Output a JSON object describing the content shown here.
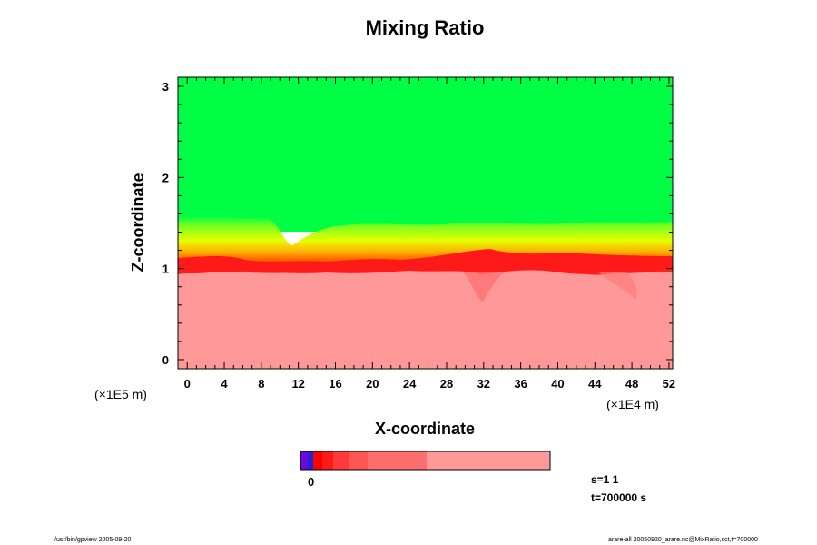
{
  "chart_data": {
    "type": "heatmap",
    "title": "Mixing Ratio",
    "xlabel": "X-coordinate",
    "ylabel": "Z-coordinate",
    "x_scale_label": "(×1E4 m)",
    "y_scale_label": "(×1E5 m)",
    "xlim": [
      -1,
      52.4
    ],
    "ylim": [
      -0.1,
      3.1
    ],
    "x_ticks": [
      "0",
      "4",
      "8",
      "12",
      "16",
      "20",
      "24",
      "28",
      "32",
      "36",
      "40",
      "44",
      "48",
      "52"
    ],
    "y_ticks": [
      "0",
      "1",
      "2",
      "3"
    ],
    "regions": [
      {
        "name": "upper",
        "z_from": 1.5,
        "z_to": 3.1,
        "color": "#00ff44"
      },
      {
        "name": "transition",
        "z_from": 1.1,
        "z_to": 1.5,
        "color": "#e8ff00"
      },
      {
        "name": "interface",
        "z_from": 1.0,
        "z_to": 1.1,
        "color": "#ff1a1a"
      },
      {
        "name": "lower",
        "z_from": -0.1,
        "z_to": 1.0,
        "color": "#ff9999"
      }
    ],
    "colorbar": {
      "label": "0",
      "segments": [
        "#6a0ad6",
        "#2222dd",
        "#ff0000",
        "#ff1a1a",
        "#ff3a3a",
        "#ff5555",
        "#ff6e6e",
        "#ff9a9a"
      ]
    },
    "info": [
      "s=1 1",
      "t=700000 s"
    ],
    "grid": false
  },
  "footer": {
    "left": "/usr/bin/gpview 2005-09-20",
    "right": "arare-all 20050920_arare.nc@MixRatio,sct,t=700000"
  }
}
